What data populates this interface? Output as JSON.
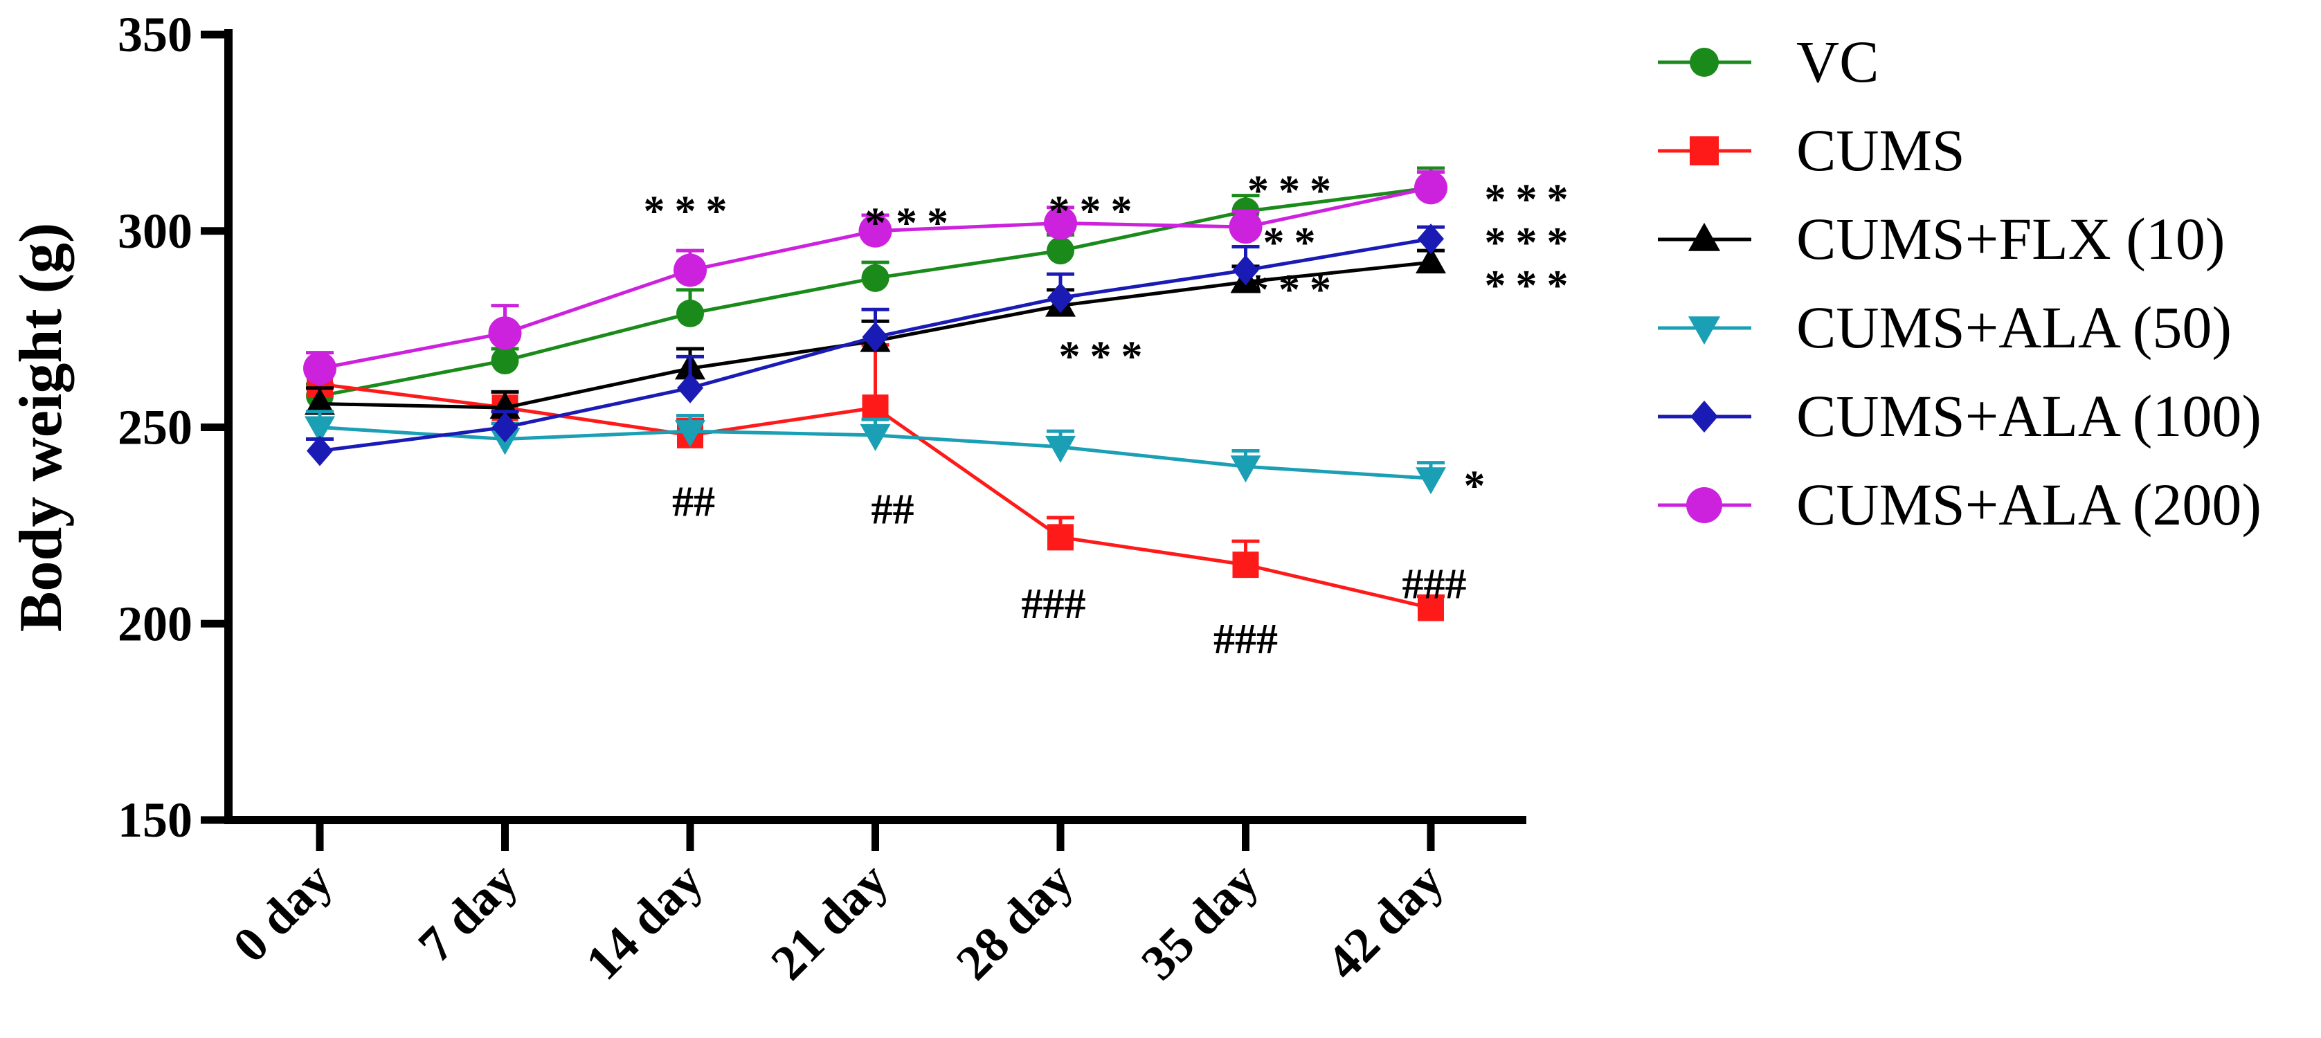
{
  "chart_data": {
    "type": "line",
    "title": "",
    "xlabel": "",
    "ylabel": "Body weight (g)",
    "ylim": [
      150,
      350
    ],
    "yticks": [
      150,
      200,
      250,
      300,
      350
    ],
    "categories": [
      "0 day",
      "7 day",
      "14 day",
      "21 day",
      "28 day",
      "35 day",
      "42 day"
    ],
    "grid": false,
    "legend_position": "right",
    "series": [
      {
        "name": "VC",
        "color": "#1a8a1a",
        "marker": "circle",
        "values": [
          258,
          267,
          279,
          288,
          295,
          305,
          311
        ],
        "errors": [
          3,
          3,
          6,
          4,
          4,
          4,
          5
        ]
      },
      {
        "name": "CUMS",
        "color": "#ff1a1a",
        "marker": "square",
        "values": [
          261,
          255,
          248,
          255,
          222,
          215,
          204
        ],
        "errors": [
          3,
          4,
          4,
          16,
          5,
          6,
          3
        ]
      },
      {
        "name": "CUMS+FLX (10)",
        "color": "#000000",
        "marker": "triangle-up",
        "values": [
          256,
          255,
          265,
          272,
          281,
          287,
          292
        ],
        "errors": [
          4,
          4,
          5,
          5,
          4,
          4,
          3
        ]
      },
      {
        "name": "CUMS+ALA (50)",
        "color": "#1a9fb5",
        "marker": "triangle-down",
        "values": [
          250,
          247,
          249,
          248,
          245,
          240,
          237
        ],
        "errors": [
          4,
          4,
          4,
          4,
          4,
          4,
          4
        ]
      },
      {
        "name": "CUMS+ALA (100)",
        "color": "#1a1ab5",
        "marker": "diamond",
        "values": [
          244,
          250,
          260,
          273,
          283,
          290,
          298
        ],
        "errors": [
          3,
          4,
          8,
          7,
          6,
          6,
          3
        ]
      },
      {
        "name": "CUMS+ALA (200)",
        "color": "#cc22dd",
        "marker": "circle",
        "values": [
          265,
          274,
          290,
          300,
          302,
          301,
          311
        ],
        "errors": [
          4,
          7,
          5,
          4,
          4,
          4,
          4
        ]
      }
    ],
    "annotations": [
      {
        "text": "***",
        "category": "14 day",
        "y": 305
      },
      {
        "text": "***",
        "category": "21 day",
        "y": 302
      },
      {
        "text": "***",
        "category": "28 day",
        "y": 305
      },
      {
        "text": "***",
        "category": "35 day",
        "y": 307
      },
      {
        "text": "**",
        "category": "35 day",
        "y": 297
      },
      {
        "text": "***",
        "category": "35 day",
        "y": 285
      },
      {
        "text": "***",
        "category": "28 day",
        "y": 268
      },
      {
        "text": "***",
        "category": "42 day",
        "y": 308
      },
      {
        "text": "***",
        "category": "42 day",
        "y": 297
      },
      {
        "text": "***",
        "category": "42 day",
        "y": 286
      },
      {
        "text": "*",
        "category": "42 day",
        "y": 235
      },
      {
        "text": "##",
        "category": "14 day",
        "y": 231
      },
      {
        "text": "##",
        "category": "21 day",
        "y": 229
      },
      {
        "text": "###",
        "category": "28 day",
        "y": 205
      },
      {
        "text": "###",
        "category": "35 day",
        "y": 196
      },
      {
        "text": "###",
        "category": "42 day",
        "y": 210
      }
    ]
  }
}
